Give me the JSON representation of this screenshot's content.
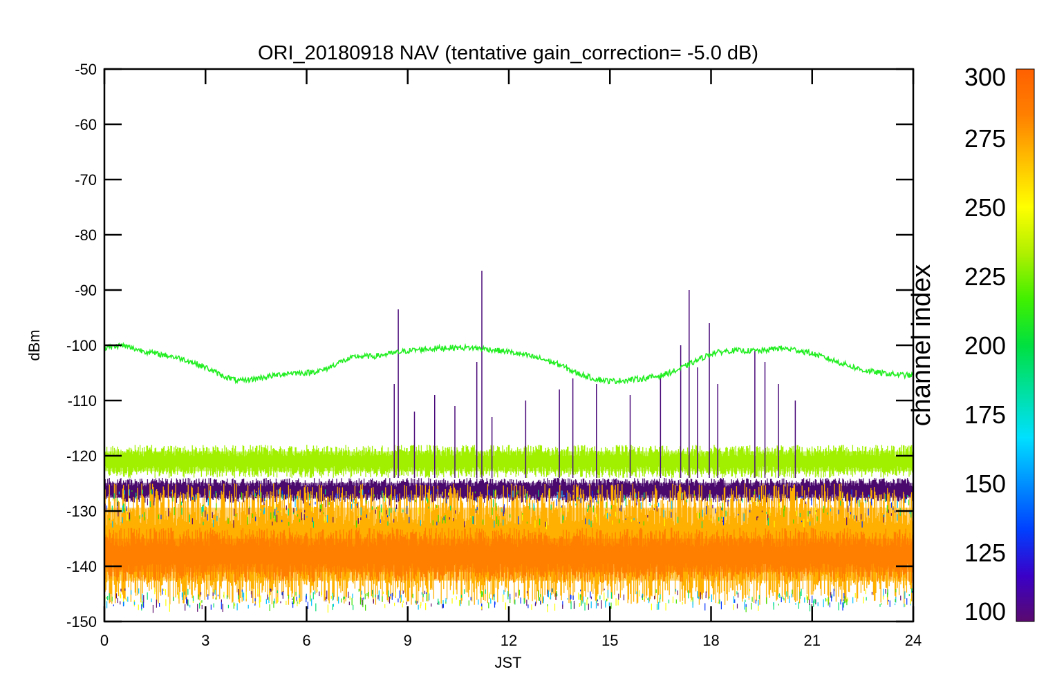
{
  "chart_data": {
    "type": "line",
    "title": "ORI_20180918 NAV (tentative gain_correction= -5.0 dB)",
    "xlabel": "JST",
    "ylabel": "dBm",
    "xlim": [
      0,
      24
    ],
    "ylim": [
      -150,
      -50
    ],
    "x_ticks": [
      0,
      3,
      6,
      9,
      12,
      15,
      18,
      21,
      24
    ],
    "y_ticks": [
      -50,
      -60,
      -70,
      -80,
      -90,
      -100,
      -110,
      -120,
      -130,
      -140,
      -150
    ],
    "grid": false,
    "colorbar": {
      "label": "channel index",
      "range": [
        100,
        300
      ],
      "ticks": [
        300,
        275,
        250,
        225,
        200,
        175,
        150,
        125,
        100
      ],
      "colormap": [
        "#5a0a6e",
        "#3a00c8",
        "#0040ff",
        "#0090ff",
        "#00e0ff",
        "#00e0a0",
        "#00e040",
        "#40f000",
        "#b0f000",
        "#ffff00",
        "#ffc000",
        "#ff8000",
        "#ff6000"
      ]
    },
    "series": [
      {
        "channel_index": 240,
        "color": "#22ee22",
        "x": [
          0,
          0.5,
          1,
          1.5,
          2,
          2.5,
          3,
          3.5,
          4,
          4.5,
          5,
          5.5,
          6,
          6.5,
          7,
          7.5,
          8,
          8.5,
          9,
          9.5,
          10,
          10.5,
          11,
          11.5,
          12,
          12.5,
          13,
          13.5,
          14,
          14.5,
          15,
          15.5,
          16,
          16.5,
          17,
          17.5,
          18,
          18.5,
          19,
          19.5,
          20,
          20.5,
          21,
          21.5,
          22,
          22.5,
          23,
          23.5,
          24
        ],
        "y": [
          -100.5,
          -100,
          -100.8,
          -101.5,
          -102,
          -102.8,
          -104,
          -105.5,
          -106.5,
          -106,
          -105.5,
          -105,
          -105,
          -104.5,
          -103,
          -102,
          -102,
          -101.5,
          -101,
          -100.7,
          -100.5,
          -100.4,
          -100.5,
          -100.8,
          -101.2,
          -101.8,
          -102.5,
          -103.5,
          -105,
          -106,
          -106.5,
          -106.3,
          -106,
          -105.5,
          -104.5,
          -103,
          -101.5,
          -101,
          -101,
          -101,
          -100.5,
          -100.8,
          -101.5,
          -102.5,
          -103.5,
          -104.5,
          -105,
          -105.3,
          -105.5
        ]
      },
      {
        "channel_index": 262,
        "color": "#a0f000",
        "band": [
          -124,
          -118
        ],
        "x": [
          0,
          24
        ],
        "y": [
          -121,
          -121
        ]
      },
      {
        "channel_index": 110,
        "color": "#4a0a6e",
        "band": [
          -128.5,
          -124
        ],
        "x": [
          0,
          24
        ],
        "y": [
          -126,
          -126
        ]
      },
      {
        "channel_index": 285,
        "color": "#ffb000",
        "band": [
          -147,
          -125
        ],
        "x": [
          0,
          24
        ],
        "y": [
          -135,
          -135
        ]
      },
      {
        "channel_index": 295,
        "color": "#ff8000",
        "band": [
          -143,
          -133
        ],
        "x": [
          0,
          24
        ],
        "y": [
          -138,
          -138
        ]
      }
    ],
    "spikes": [
      {
        "x": 8.72,
        "y": -93.5
      },
      {
        "x": 8.6,
        "y": -107
      },
      {
        "x": 9.2,
        "y": -112
      },
      {
        "x": 9.8,
        "y": -109
      },
      {
        "x": 10.4,
        "y": -111
      },
      {
        "x": 11.05,
        "y": -103
      },
      {
        "x": 11.2,
        "y": -86.5
      },
      {
        "x": 11.5,
        "y": -113
      },
      {
        "x": 12.5,
        "y": -110
      },
      {
        "x": 13.5,
        "y": -108
      },
      {
        "x": 13.9,
        "y": -106
      },
      {
        "x": 14.6,
        "y": -107
      },
      {
        "x": 15.6,
        "y": -109
      },
      {
        "x": 16.5,
        "y": -106
      },
      {
        "x": 17.1,
        "y": -100
      },
      {
        "x": 17.35,
        "y": -90
      },
      {
        "x": 17.6,
        "y": -104
      },
      {
        "x": 17.95,
        "y": -96
      },
      {
        "x": 18.2,
        "y": -107
      },
      {
        "x": 19.3,
        "y": -101
      },
      {
        "x": 19.6,
        "y": -103
      },
      {
        "x": 20.0,
        "y": -107
      },
      {
        "x": 20.5,
        "y": -110
      }
    ]
  }
}
